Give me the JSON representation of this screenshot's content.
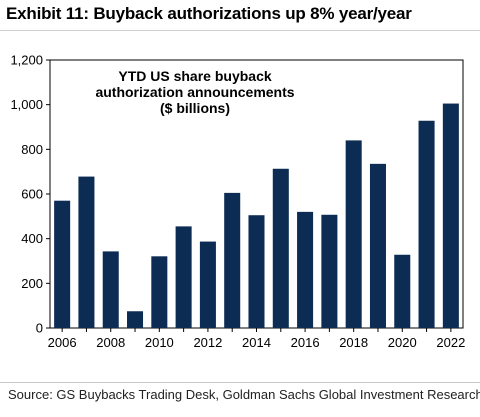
{
  "exhibit": {
    "title": "Exhibit 11: Buyback authorizations up 8% year/year"
  },
  "source": {
    "text": "Source: GS Buybacks Trading Desk, Goldman Sachs Global Investment Research"
  },
  "chart_data": {
    "type": "bar",
    "title_lines": [
      "YTD US share buyback",
      "authorization announcements",
      "($ billions)"
    ],
    "categories": [
      "2006",
      "2007",
      "2008",
      "2009",
      "2010",
      "2011",
      "2012",
      "2013",
      "2014",
      "2015",
      "2016",
      "2017",
      "2018",
      "2019",
      "2020",
      "2021",
      "2022"
    ],
    "values": [
      570,
      678,
      343,
      75,
      321,
      455,
      387,
      605,
      505,
      713,
      520,
      507,
      840,
      735,
      328,
      928,
      1005
    ],
    "x_tick_labels": [
      "2006",
      "2008",
      "2010",
      "2012",
      "2014",
      "2016",
      "2018",
      "2020",
      "2022"
    ],
    "y_ticks": [
      0,
      200,
      400,
      600,
      800,
      1000,
      1200
    ],
    "y_tick_labels": [
      "0",
      "200",
      "400",
      "600",
      "800",
      "1,000",
      "1,200"
    ],
    "ylim": [
      0,
      1200
    ],
    "xlabel": "",
    "ylabel": "",
    "bar_color": "#0d2c54",
    "grid": false
  }
}
